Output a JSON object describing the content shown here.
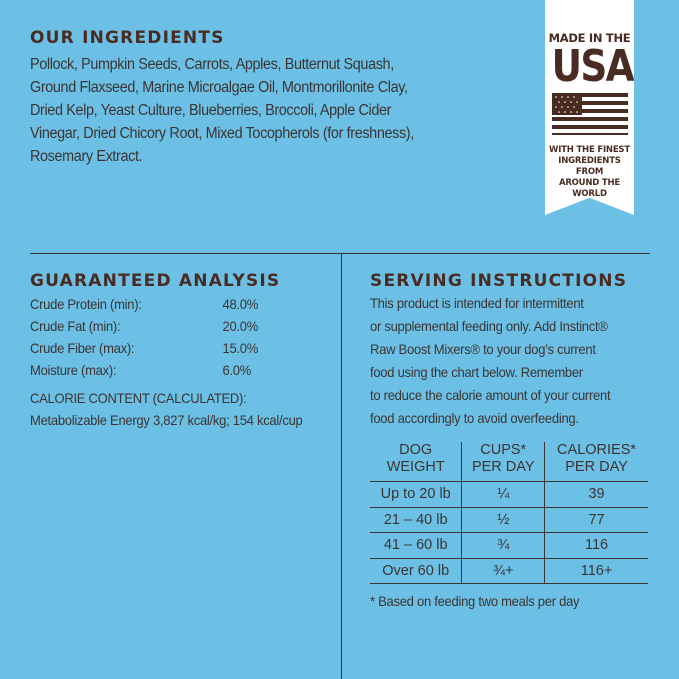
{
  "ingredients": {
    "title": "OUR INGREDIENTS",
    "lines": [
      "Pollock, Pumpkin Seeds, Carrots, Apples, Butternut Squash,",
      "Ground Flaxseed, Marine Microalgae Oil, Montmorillonite Clay,",
      "Dried Kelp, Yeast Culture, Blueberries, Broccoli, Apple Cider",
      "Vinegar, Dried Chicory Root, Mixed Tocopherols (for freshness),",
      "Rosemary Extract."
    ]
  },
  "badge": {
    "top": "MADE IN THE",
    "big": "USA",
    "bottom": [
      "WITH THE FINEST",
      "INGREDIENTS FROM",
      "AROUND THE WORLD"
    ],
    "icon": "us-flag-icon"
  },
  "analysis": {
    "title": "GUARANTEED ANALYSIS",
    "rows": [
      {
        "label": "Crude Protein (min):",
        "value": "48.0%"
      },
      {
        "label": "Crude Fat (min):",
        "value": "20.0%"
      },
      {
        "label": "Crude Fiber (max):",
        "value": "15.0%"
      },
      {
        "label": "Moisture (max):",
        "value": "6.0%"
      }
    ],
    "calorie_label": "CALORIE CONTENT (CALCULATED):",
    "calorie_value": "Metabolizable Energy 3,827 kcal/kg; 154 kcal/cup"
  },
  "serving": {
    "title": "SERVING INSTRUCTIONS",
    "lines": [
      "This product is intended for intermittent",
      "or supplemental feeding only. Add Instinct®",
      "Raw Boost Mixers® to your dog’s current",
      "food using the chart below. Remember",
      "to reduce the calorie amount of your current",
      "food accordingly to avoid overfeeding."
    ],
    "table": {
      "headers": [
        [
          "DOG",
          "WEIGHT"
        ],
        [
          "CUPS*",
          "PER DAY"
        ],
        [
          "CALORIES*",
          "PER DAY"
        ]
      ],
      "rows": [
        [
          "Up to 20 lb",
          "¼",
          "39"
        ],
        [
          "21 – 40 lb",
          "½",
          "77"
        ],
        [
          "41 – 60 lb",
          "¾",
          "116"
        ],
        [
          "Over 60 lb",
          "¾+",
          "116+"
        ]
      ]
    },
    "footnote": "* Based on feeding two meals per day"
  }
}
